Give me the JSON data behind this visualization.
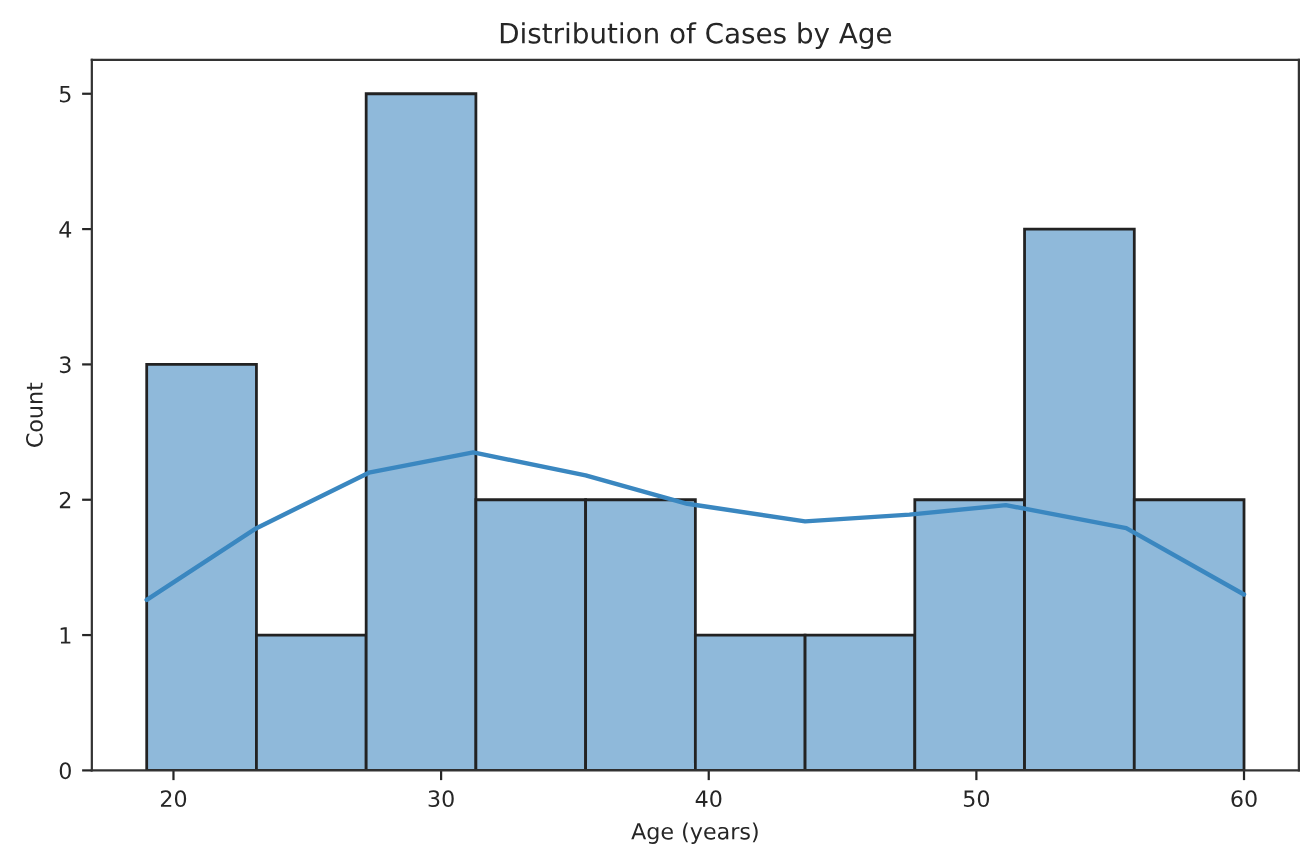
{
  "chart_data": {
    "type": "histogram",
    "title": "Distribution of Cases by Age",
    "xlabel": "Age (years)",
    "ylabel": "Count",
    "bins": [
      19,
      23.1,
      27.2,
      31.3,
      35.4,
      39.5,
      43.6,
      47.7,
      51.8,
      55.9,
      60
    ],
    "series": [
      {
        "color": "#8fb9da",
        "values": [
          3,
          1,
          5,
          2,
          2,
          1,
          1,
          2,
          4,
          2
        ]
      },
      {
        "type": "line",
        "color": "#3a87c0",
        "x": [
          19.0,
          23.1,
          27.3,
          31.2,
          35.4,
          39.2,
          43.6,
          47.5,
          51.1,
          55.6,
          60.0
        ],
        "values": [
          1.26,
          1.79,
          2.2,
          2.35,
          2.18,
          1.97,
          1.84,
          1.89,
          1.96,
          1.79,
          1.3
        ]
      }
    ],
    "xlim": [
      16.95,
      62.05
    ],
    "xticks": [
      20,
      30,
      40,
      50,
      60
    ],
    "ylim": [
      0,
      5.25
    ],
    "yticks": [
      0,
      1,
      2,
      3,
      4,
      5
    ],
    "grid": false
  }
}
